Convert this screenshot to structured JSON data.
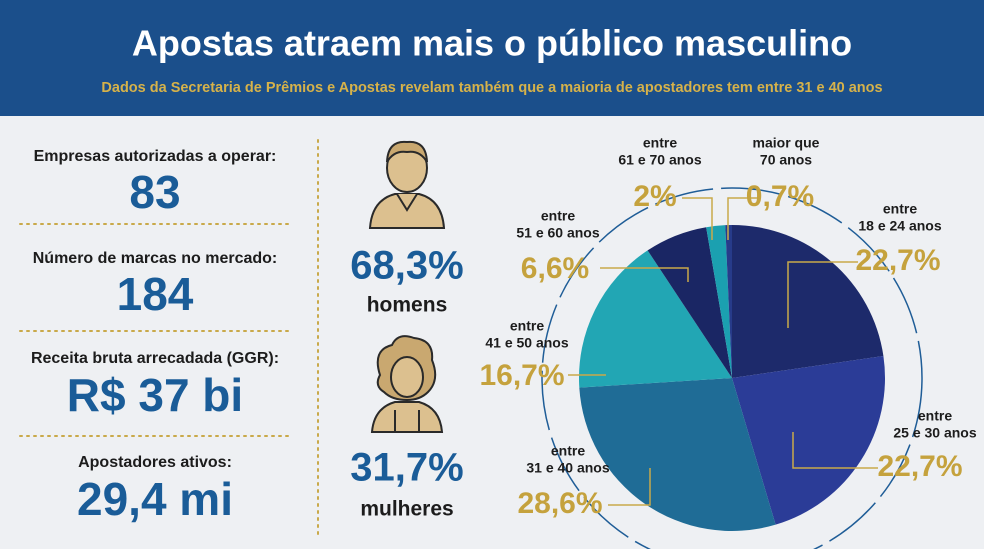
{
  "header": {
    "title": "Apostas atraem mais o público masculino",
    "subtitle": "Dados da Secretaria de Prêmios e Apostas revelam também que a maioria de apostadores tem entre 31 e 40 anos"
  },
  "stats": [
    {
      "label": "Empresas autorizadas a operar:",
      "value": "83"
    },
    {
      "label": "Número de marcas no mercado:",
      "value": "184"
    },
    {
      "label": "Receita bruta arrecadada (GGR):",
      "value": "R$ 37 bi"
    },
    {
      "label": "Apostadores ativos:",
      "value": "29,4 mi"
    }
  ],
  "gender": [
    {
      "value": "68,3%",
      "label": "homens"
    },
    {
      "value": "31,7%",
      "label": "mulheres"
    }
  ],
  "chart_data": {
    "type": "pie",
    "categories": [
      "entre\n18 e 24 anos",
      "entre\n25 e 30 anos",
      "entre\n31 e 40 anos",
      "entre\n41 e 50 anos",
      "entre\n51 e 60 anos",
      "entre\n61 e 70 anos",
      "maior que\n70 anos"
    ],
    "values": [
      22.7,
      22.7,
      28.6,
      16.7,
      6.6,
      2,
      0.7
    ],
    "value_labels": [
      "22,7%",
      "22,7%",
      "28,6%",
      "16,7%",
      "6,6%",
      "2%",
      "0,7%"
    ],
    "colors": [
      "#1d2a6b",
      "#2b3c97",
      "#1f6c96",
      "#22a6b4",
      "#1a2664",
      "#1ba0b0",
      "#273b8a"
    ]
  }
}
